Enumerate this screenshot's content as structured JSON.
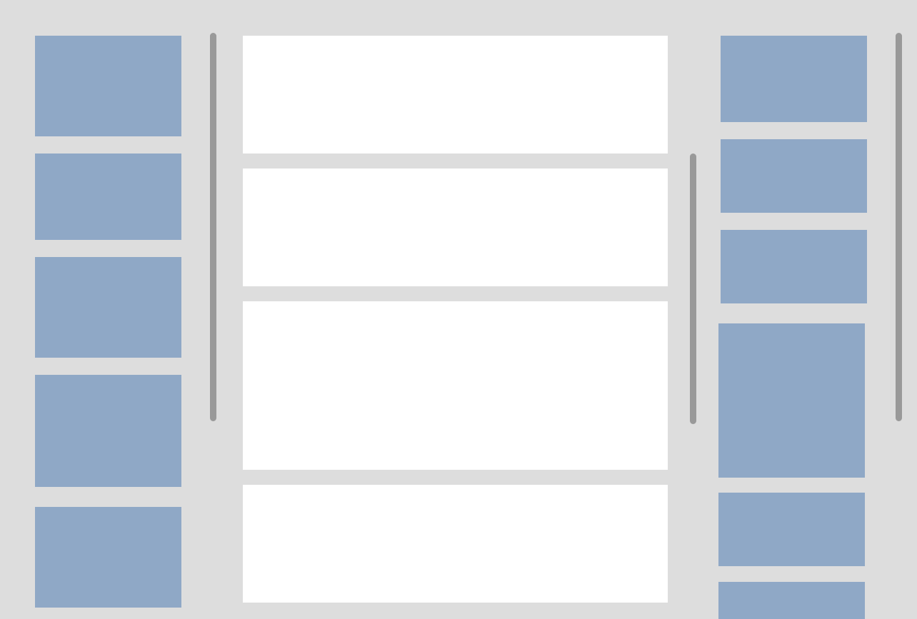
{
  "theme": {
    "background": "#dddddd",
    "tile_color": "#8fa8c6",
    "card_color": "#ffffff",
    "scrollbar_color": "#999999"
  },
  "left_column": {
    "tiles": [
      {
        "id": "l1"
      },
      {
        "id": "l2"
      },
      {
        "id": "l3"
      },
      {
        "id": "l4"
      },
      {
        "id": "l5"
      }
    ]
  },
  "middle_column": {
    "cards": [
      {
        "id": "m1"
      },
      {
        "id": "m2"
      },
      {
        "id": "m3"
      },
      {
        "id": "m4"
      }
    ]
  },
  "right_column": {
    "tiles": [
      {
        "id": "r1"
      },
      {
        "id": "r2"
      },
      {
        "id": "r3"
      },
      {
        "id": "r4"
      },
      {
        "id": "r5"
      },
      {
        "id": "r6"
      }
    ]
  }
}
